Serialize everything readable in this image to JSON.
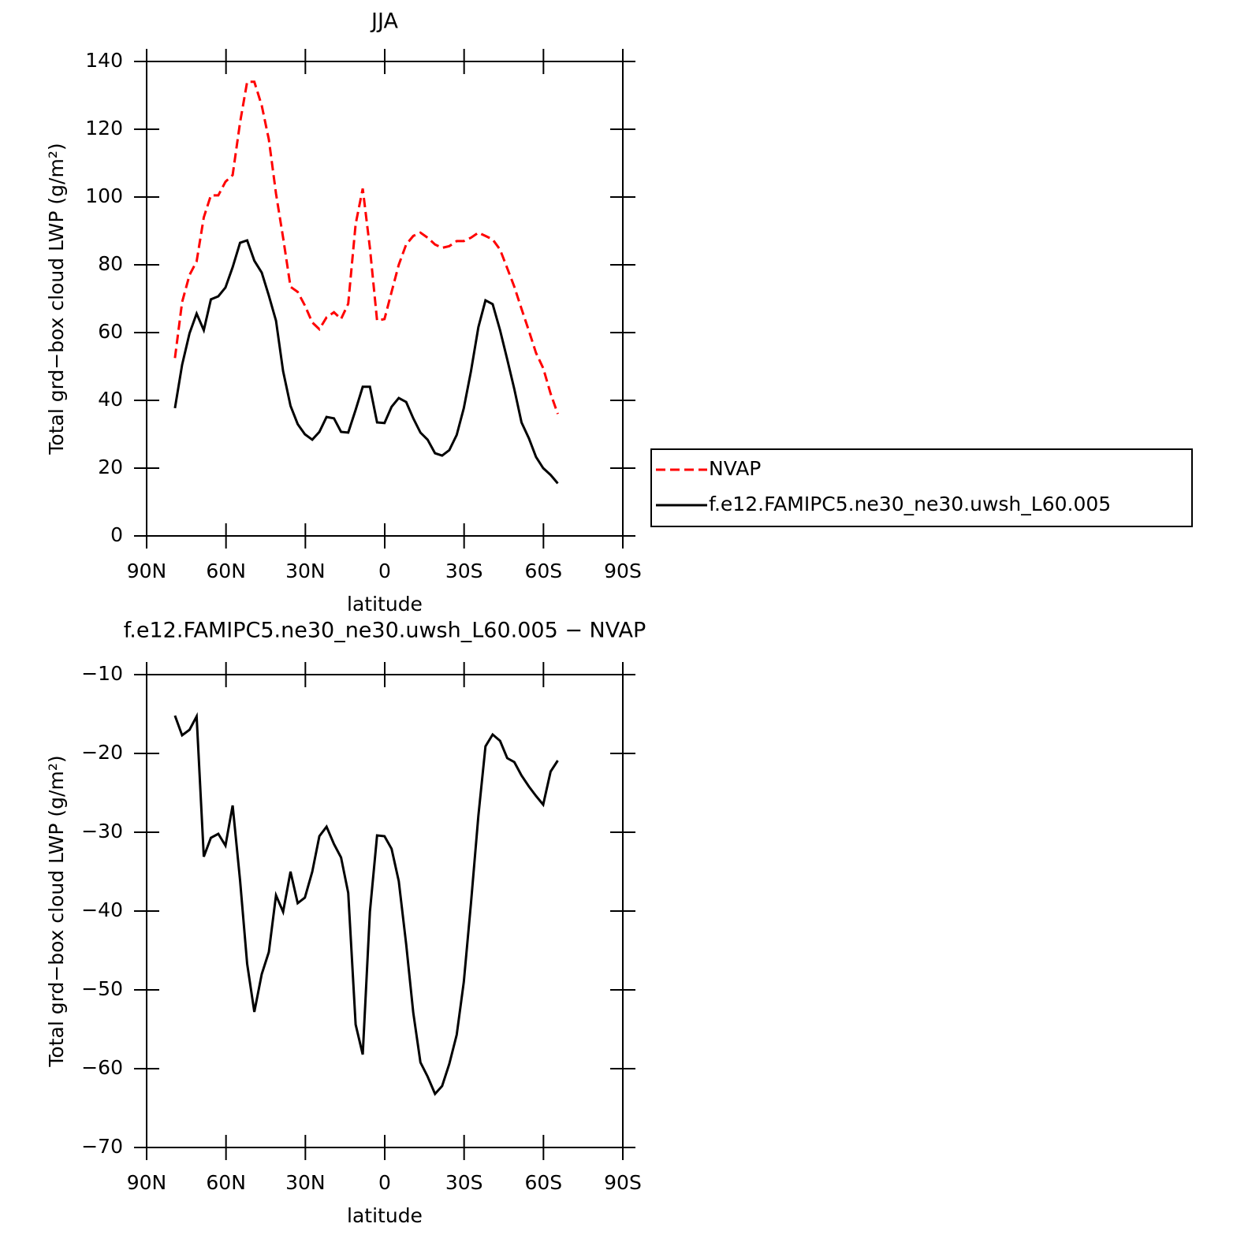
{
  "chart_data": [
    {
      "type": "line",
      "title": "JJA",
      "x_label": "latitude",
      "y_label": "Total grd−box cloud LWP (g/m²)",
      "x": [
        79.3,
        76.6,
        73.8,
        71.1,
        68.4,
        65.7,
        62.9,
        60.2,
        57.5,
        54.7,
        52.0,
        49.3,
        46.5,
        43.8,
        41.1,
        38.4,
        35.6,
        32.9,
        30.2,
        27.4,
        24.7,
        22.0,
        19.2,
        16.5,
        13.8,
        11.0,
        8.3,
        5.6,
        2.9,
        0.1,
        -2.6,
        -5.3,
        -8.1,
        -10.8,
        -13.5,
        -16.2,
        -19.0,
        -21.7,
        -24.4,
        -27.2,
        -29.9,
        -32.6,
        -35.4,
        -38.1,
        -40.8,
        -43.6,
        -46.3,
        -49.0,
        -51.7,
        -54.5,
        -57.2,
        -59.9,
        -62.7,
        -65.4
      ],
      "series": [
        {
          "name": "NVAP",
          "color": "#ff0000",
          "line_style": "dashed",
          "values": [
            52.5,
            69,
            77,
            81,
            94,
            100.5,
            100.5,
            104.5,
            106.5,
            122,
            134,
            134,
            127,
            117,
            101,
            88,
            73.5,
            72,
            68,
            63,
            61,
            64.5,
            66,
            64,
            68.5,
            92,
            102.5,
            85,
            63.5,
            64,
            72,
            80,
            86,
            88.5,
            89.5,
            88,
            86,
            85,
            85.5,
            87,
            87,
            88,
            89.5,
            88.5,
            87.5,
            84.5,
            79,
            73.5,
            67,
            60.5,
            54,
            49.5,
            42,
            36
          ]
        },
        {
          "name": "f.e12.FAMIPC5.ne30_ne30.uwsh_L60.005",
          "color": "#000000",
          "line_style": "solid",
          "values": [
            37.7,
            50.5,
            59.8,
            65.6,
            60.7,
            69.8,
            70.7,
            73.3,
            79.3,
            86.5,
            87.2,
            81.2,
            77.7,
            70.9,
            63.5,
            48.6,
            38.4,
            33.0,
            30.0,
            28.4,
            30.7,
            35.1,
            34.7,
            30.7,
            30.5,
            37.2,
            44.0,
            44.0,
            33.5,
            33.3,
            38.1,
            40.7,
            39.5,
            34.7,
            30.5,
            28.4,
            24.4,
            23.7,
            25.3,
            29.8,
            37.7,
            48.6,
            61.6,
            69.5,
            68.4,
            60.7,
            52.1,
            43.3,
            33.5,
            28.8,
            23.3,
            20.0,
            18.0,
            15.5
          ]
        }
      ],
      "xlim": [
        90,
        -90
      ],
      "xticks": [
        {
          "value": 90,
          "label": "90N"
        },
        {
          "value": 60,
          "label": "60N"
        },
        {
          "value": 30,
          "label": "30N"
        },
        0,
        {
          "value": -30,
          "label": "30S"
        },
        {
          "value": -60,
          "label": "60S"
        },
        {
          "value": -90,
          "label": "90S"
        }
      ],
      "ylim": [
        0,
        140
      ],
      "yticks": [
        0,
        20,
        40,
        60,
        80,
        100,
        120,
        140
      ],
      "legend": "right"
    },
    {
      "type": "line",
      "title": "f.e12.FAMIPC5.ne30_ne30.uwsh_L60.005 − NVAP",
      "x_label": "latitude",
      "y_label": "Total grd−box cloud LWP (g/m²)",
      "x": [
        79.3,
        76.6,
        73.8,
        71.1,
        68.4,
        65.7,
        62.9,
        60.2,
        57.5,
        54.7,
        52.0,
        49.3,
        46.5,
        43.8,
        41.1,
        38.4,
        35.6,
        32.9,
        30.2,
        27.4,
        24.7,
        22.0,
        19.2,
        16.5,
        13.8,
        11.0,
        8.3,
        5.6,
        2.9,
        0.1,
        -2.6,
        -5.3,
        -8.1,
        -10.8,
        -13.5,
        -16.2,
        -19.0,
        -21.7,
        -24.4,
        -27.2,
        -29.9,
        -32.6,
        -35.4,
        -38.1,
        -40.8,
        -43.6,
        -46.3,
        -49.0,
        -51.7,
        -54.5,
        -57.2,
        -59.9,
        -62.7,
        -65.4
      ],
      "series": [
        {
          "color": "#000000",
          "line_style": "solid",
          "values": [
            -15.2,
            -17.7,
            -17,
            -15.3,
            -33.1,
            -30.7,
            -30.2,
            -31.7,
            -26.6,
            -36.1,
            -46.7,
            -52.8,
            -48,
            -45.2,
            -38,
            -40.1,
            -35,
            -39,
            -38.3,
            -35,
            -30.5,
            -29.3,
            -31.5,
            -33.2,
            -37.7,
            -54.4,
            -58.2,
            -40.1,
            -30.4,
            -30.5,
            -32.1,
            -36.2,
            -44.2,
            -52.9,
            -59.2,
            -61,
            -63.2,
            -62.2,
            -59.4,
            -55.7,
            -49,
            -39,
            -27.9,
            -19.1,
            -17.6,
            -18.4,
            -20.6,
            -21.1,
            -22.8,
            -24.2,
            -25.4,
            -26.5,
            -22.3,
            -20.9
          ]
        }
      ],
      "xlim": [
        90,
        -90
      ],
      "xticks": [
        {
          "value": 90,
          "label": "90N"
        },
        {
          "value": 60,
          "label": "60N"
        },
        {
          "value": 30,
          "label": "30N"
        },
        0,
        {
          "value": -30,
          "label": "30S"
        },
        {
          "value": -60,
          "label": "60S"
        },
        {
          "value": -90,
          "label": "90S"
        }
      ],
      "ylim": [
        -70,
        -10
      ],
      "yticks": [
        {
          "value": -70,
          "label": "−70"
        },
        {
          "value": -60,
          "label": "−60"
        },
        {
          "value": -50,
          "label": "−50"
        },
        {
          "value": -40,
          "label": "−40"
        },
        {
          "value": -30,
          "label": "−30"
        },
        {
          "value": -20,
          "label": "−20"
        },
        {
          "value": -10,
          "label": "−10"
        }
      ]
    }
  ]
}
